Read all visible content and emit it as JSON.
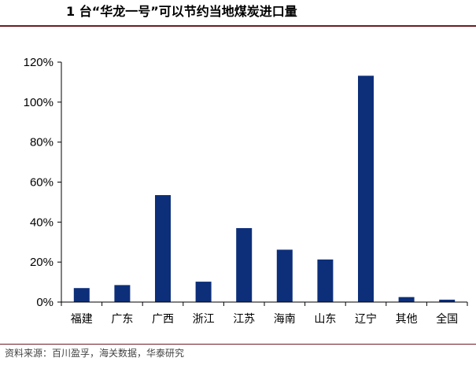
{
  "header": {
    "title": "1 台“华龙一号”可以节约当地煤炭进口量"
  },
  "footer": {
    "source": "资料来源：百川盈孚，海关数据，华泰研究"
  },
  "colors": {
    "bar": "#0d2f7a",
    "rule": "#6e1a22",
    "axis": "#000000"
  },
  "chart_data": {
    "type": "bar",
    "title": "1 台“华龙一号”可以节约当地煤炭进口量",
    "xlabel": "",
    "ylabel": "",
    "categories": [
      "福建",
      "广东",
      "广西",
      "浙江",
      "江苏",
      "海南",
      "山东",
      "辽宁",
      "其他",
      "全国"
    ],
    "values": [
      7,
      8.5,
      53.5,
      10.2,
      37,
      26.2,
      21.3,
      113.2,
      2.5,
      1.2
    ],
    "ylim": [
      0,
      120
    ],
    "yticks": [
      0,
      20,
      40,
      60,
      80,
      100,
      120
    ],
    "ytick_labels": [
      "0%",
      "20%",
      "40%",
      "60%",
      "80%",
      "100%",
      "120%"
    ],
    "grid": false,
    "legend": "none"
  }
}
